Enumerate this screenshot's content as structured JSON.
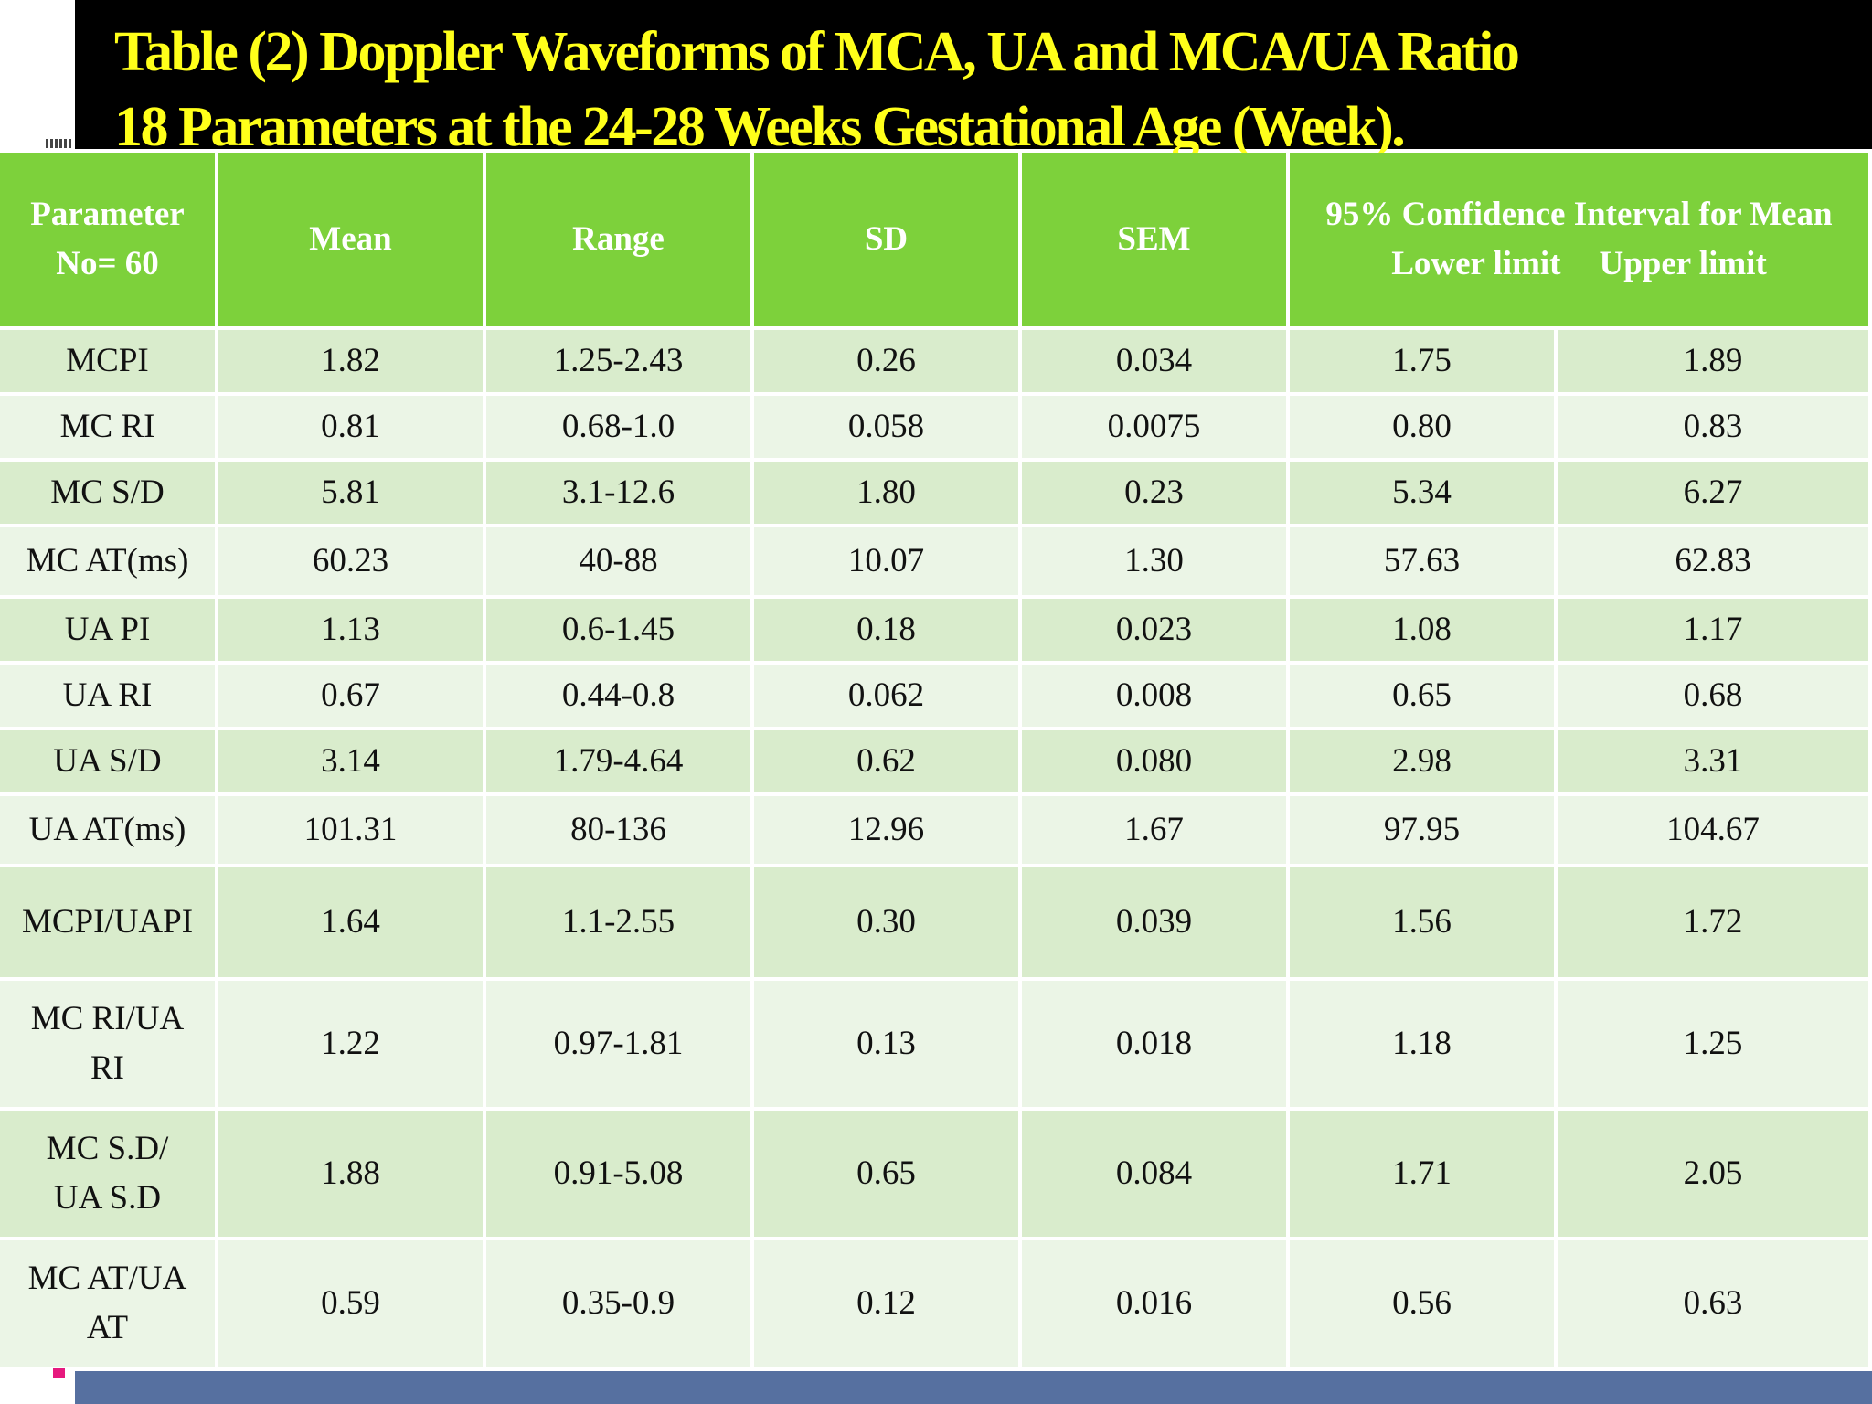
{
  "slide": {
    "title_line_1": "Table (2) Doppler Waveforms  of MCA, UA and MCA/UA Ratio",
    "title_line_2": "18  Parameters at the 24-28 Weeks Gestational Age (Week).",
    "colors": {
      "title_bg": "#000000",
      "title_text": "#ffff1a",
      "header_bg": "#7dd13b",
      "row_dark": "#d9eccc",
      "row_light": "#ebf5e6",
      "footer_bar": "#5670a0"
    }
  },
  "table": {
    "headers": {
      "parameter_line_1": "Parameter",
      "parameter_line_2": "No= 60",
      "mean": "Mean",
      "range": "Range",
      "sd": "SD",
      "sem": "SEM",
      "ci": "95% Confidence Interval for Mean",
      "lower": "Lower limit",
      "upper": "Upper limit"
    },
    "rows": [
      {
        "param": "MCPI",
        "mean": "1.82",
        "range": "1.25-2.43",
        "sd": "0.26",
        "sem": "0.034",
        "lower": "1.75",
        "upper": "1.89"
      },
      {
        "param": "MC RI",
        "mean": "0.81",
        "range": "0.68-1.0",
        "sd": "0.058",
        "sem": "0.0075",
        "lower": "0.80",
        "upper": "0.83"
      },
      {
        "param": "MC S/D",
        "mean": "5.81",
        "range": "3.1-12.6",
        "sd": "1.80",
        "sem": "0.23",
        "lower": "5.34",
        "upper": "6.27"
      },
      {
        "param": "MC AT(ms)",
        "mean": "60.23",
        "range": "40-88",
        "sd": "10.07",
        "sem": "1.30",
        "lower": "57.63",
        "upper": "62.83"
      },
      {
        "param": "UA PI",
        "mean": "1.13",
        "range": "0.6-1.45",
        "sd": "0.18",
        "sem": "0.023",
        "lower": "1.08",
        "upper": "1.17"
      },
      {
        "param": "UA RI",
        "mean": "0.67",
        "range": "0.44-0.8",
        "sd": "0.062",
        "sem": "0.008",
        "lower": "0.65",
        "upper": "0.68"
      },
      {
        "param": "UA S/D",
        "mean": "3.14",
        "range": "1.79-4.64",
        "sd": "0.62",
        "sem": "0.080",
        "lower": "2.98",
        "upper": "3.31"
      },
      {
        "param": "UA AT(ms)",
        "mean": "101.31",
        "range": "80-136",
        "sd": "12.96",
        "sem": "1.67",
        "lower": "97.95",
        "upper": "104.67"
      },
      {
        "param": "MCPI/UAPI",
        "mean": "1.64",
        "range": "1.1-2.55",
        "sd": "0.30",
        "sem": "0.039",
        "lower": "1.56",
        "upper": "1.72"
      },
      {
        "param_line_1": "MC RI/UA",
        "param_line_2": "RI",
        "mean": "1.22",
        "range": "0.97-1.81",
        "sd": "0.13",
        "sem": "0.018",
        "lower": "1.18",
        "upper": "1.25"
      },
      {
        "param_line_1": "MC S.D/",
        "param_line_2": "UA S.D",
        "mean": "1.88",
        "range": "0.91-5.08",
        "sd": "0.65",
        "sem": "0.084",
        "lower": "1.71",
        "upper": "2.05"
      },
      {
        "param_line_1": "MC AT/UA",
        "param_line_2": "AT",
        "mean": "0.59",
        "range": "0.35-0.9",
        "sd": "0.12",
        "sem": "0.016",
        "lower": "0.56",
        "upper": "0.63"
      }
    ]
  }
}
